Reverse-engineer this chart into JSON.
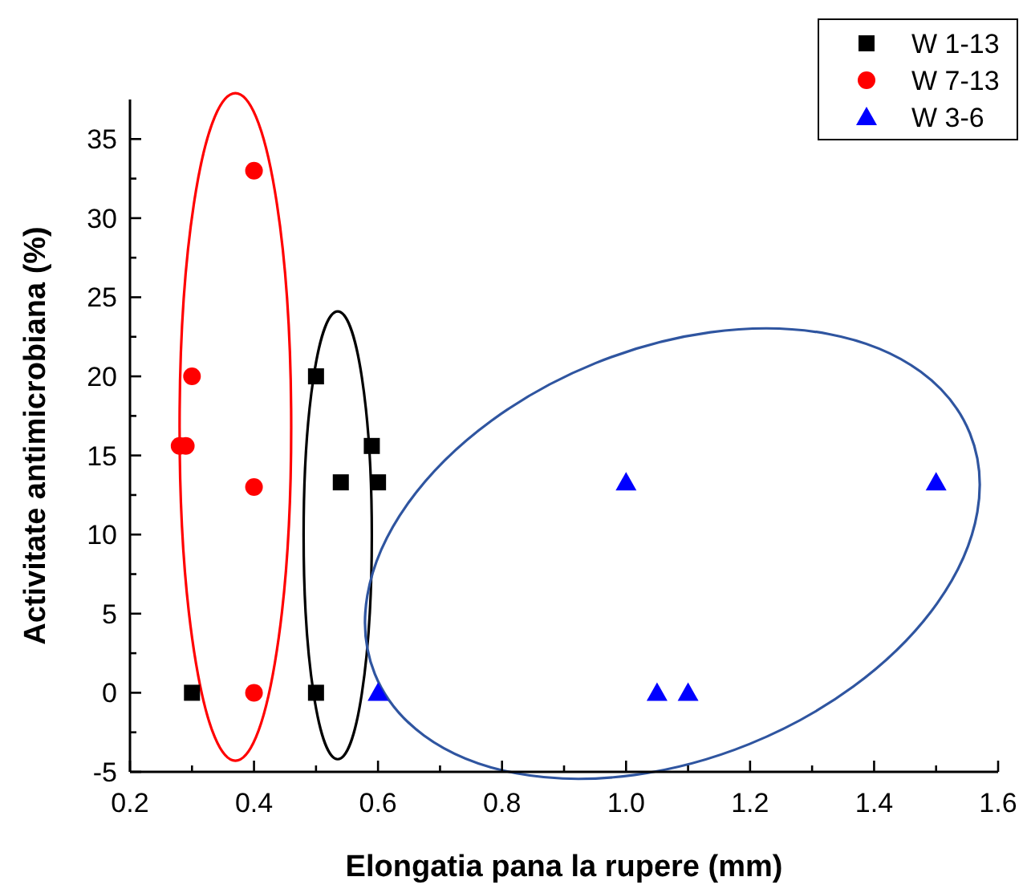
{
  "chart_data": {
    "type": "scatter",
    "xlabel": "Elongatia pana la rupere (mm)",
    "ylabel": "Activitate antimicrobiana (%)",
    "xlim": [
      0.2,
      1.6
    ],
    "ylim": [
      -5,
      37.5
    ],
    "xticks": [
      0.2,
      {
        "value": 0.3,
        "label": null
      },
      0.4,
      {
        "value": 0.5,
        "label": null
      },
      0.6,
      {
        "value": 0.7,
        "label": null
      },
      0.8,
      {
        "value": 0.9,
        "label": null
      },
      {
        "value": 1.0,
        "label": "1.0"
      },
      {
        "value": 1.1,
        "label": null
      },
      1.2,
      {
        "value": 1.3,
        "label": null
      },
      1.4,
      {
        "value": 1.5,
        "label": null
      },
      1.6
    ],
    "yticks": [
      -5,
      {
        "value": -2.5,
        "label": null
      },
      0,
      {
        "value": 2.5,
        "label": null
      },
      5,
      {
        "value": 7.5,
        "label": null
      },
      10,
      {
        "value": 12.5,
        "label": null
      },
      15,
      {
        "value": 17.5,
        "label": null
      },
      20,
      {
        "value": 22.5,
        "label": null
      },
      25,
      {
        "value": 27.5,
        "label": null
      },
      30,
      {
        "value": 32.5,
        "label": null
      },
      35
    ],
    "grid": false,
    "legend": "top right",
    "series": [
      {
        "name": "W 1-13",
        "color": "#000000",
        "marker": "square",
        "x": [
          0.3,
          0.5,
          0.5,
          0.54,
          0.59,
          0.6
        ],
        "values": [
          0,
          0,
          20,
          13.3,
          15.6,
          13.3
        ]
      },
      {
        "name": "W 7-13",
        "color": "#ff0000",
        "marker": "circle",
        "x": [
          0.28,
          0.29,
          0.3,
          0.4,
          0.4,
          0.4
        ],
        "values": [
          15.6,
          15.6,
          20,
          33,
          13,
          0
        ]
      },
      {
        "name": "W 3-6",
        "color": "#0000ff",
        "marker": "triangle",
        "x": [
          0.6,
          1.0,
          1.05,
          1.1,
          1.5
        ],
        "values": [
          0,
          13.3,
          0,
          0,
          13.3
        ]
      }
    ]
  }
}
